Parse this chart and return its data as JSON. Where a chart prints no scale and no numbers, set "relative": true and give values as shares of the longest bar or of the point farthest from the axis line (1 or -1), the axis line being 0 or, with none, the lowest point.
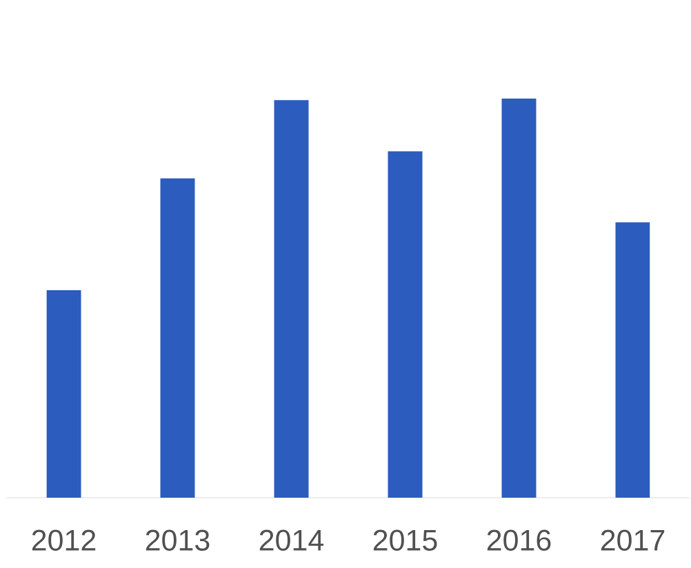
{
  "chart_data": {
    "type": "bar",
    "relative": true,
    "categories": [
      "2012",
      "2013",
      "2014",
      "2015",
      "2016",
      "2017"
    ],
    "values": [
      0.52,
      0.8,
      0.996,
      0.868,
      1,
      0.69
    ],
    "color": "#2c5cbd"
  }
}
